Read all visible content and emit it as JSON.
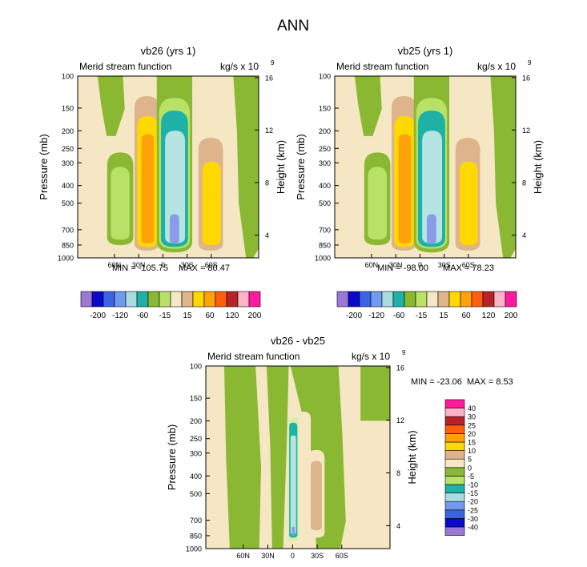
{
  "page": {
    "main_title": "ANN"
  },
  "colors": {
    "bg_pos": "#f5e6c4",
    "green": "#8ab833",
    "light_green": "#b7e267",
    "pale_green": "#d5f0a8",
    "teal": "#1fb1a6",
    "light_cyan": "#b5e4e2",
    "blue": "#8a9ce8",
    "tan": "#ddb48c",
    "yellow": "#ffd800",
    "orange": "#ffa20a"
  },
  "chart_data": [
    {
      "type": "contour",
      "title": "vb26 (yrs 1)",
      "left_label": "Merid stream function",
      "units_prefix": "kg/s x 10",
      "units_exp": "9",
      "ylabel": "Pressure (mb)",
      "ylabel_right": "Height (km)",
      "pressure_ticks": [
        "100",
        "150",
        "200",
        "250",
        "300",
        "400",
        "500",
        "700",
        "850",
        "1000"
      ],
      "height_ticks": [
        "16",
        "12",
        "8",
        "4"
      ],
      "lat_ticks": [
        "60N",
        "30N",
        "0",
        "30S",
        "60S"
      ],
      "min_label": "MIN = -105.75",
      "max_label": "MAX = 80.47",
      "min": -105.75,
      "max": 80.47
    },
    {
      "type": "contour",
      "title": "vb25 (yrs 1)",
      "left_label": "Merid stream function",
      "units_prefix": "kg/s x 10",
      "units_exp": "9",
      "ylabel": "Pressure (mb)",
      "ylabel_right": "Height (km)",
      "pressure_ticks": [
        "100",
        "150",
        "200",
        "250",
        "300",
        "400",
        "500",
        "700",
        "850",
        "1000"
      ],
      "height_ticks": [
        "16",
        "12",
        "8",
        "4"
      ],
      "lat_ticks": [
        "60N",
        "30N",
        "0",
        "30S",
        "60S"
      ],
      "min_label": "MIN = -98.00",
      "max_label": "MAX = 78.23",
      "min": -98.0,
      "max": 78.23
    },
    {
      "type": "contour",
      "title": "vb26 - vb25",
      "left_label": "Merid stream function",
      "units_prefix": "kg/s x 10",
      "units_exp": "9",
      "ylabel": "Pressure (mb)",
      "ylabel_right": "Height (km)",
      "pressure_ticks": [
        "100",
        "150",
        "200",
        "250",
        "300",
        "400",
        "500",
        "700",
        "850",
        "1000"
      ],
      "height_ticks": [
        "16",
        "12",
        "8",
        "4"
      ],
      "lat_ticks": [
        "60N",
        "30N",
        "0",
        "30S",
        "60S"
      ],
      "min_label": "MIN = -23.06",
      "max_label": "MAX =   8.53",
      "min": -23.06,
      "max": 8.53
    }
  ],
  "colorbar_top": {
    "colors": [
      "#9b78d6",
      "#0a0acb",
      "#3d62e6",
      "#6f9af0",
      "#a8dce0",
      "#1fb1a6",
      "#8ab833",
      "#b7e267",
      "#f5e6c4",
      "#ddb48c",
      "#ffd800",
      "#ffa20a",
      "#ff5e0f",
      "#b8232b",
      "#ffb3c5",
      "#ff1a9e"
    ],
    "labels": [
      "-200",
      "-120",
      "-60",
      "-15",
      "15",
      "60",
      "120",
      "200"
    ]
  },
  "colorbar_diff": {
    "colors": [
      "#9b78d6",
      "#0a0acb",
      "#3d62e6",
      "#6f9af0",
      "#a8dce0",
      "#1fb1a6",
      "#b7e267",
      "#8ab833",
      "#f5e6c4",
      "#ddb48c",
      "#ffd800",
      "#ffa20a",
      "#ff5e0f",
      "#b8232b",
      "#ffb3c5",
      "#ff1a9e"
    ],
    "labels": [
      "-40",
      "-30",
      "-25",
      "-20",
      "-15",
      "-10",
      "-5",
      "0",
      "5",
      "10",
      "15",
      "20",
      "25",
      "30",
      "40"
    ]
  }
}
